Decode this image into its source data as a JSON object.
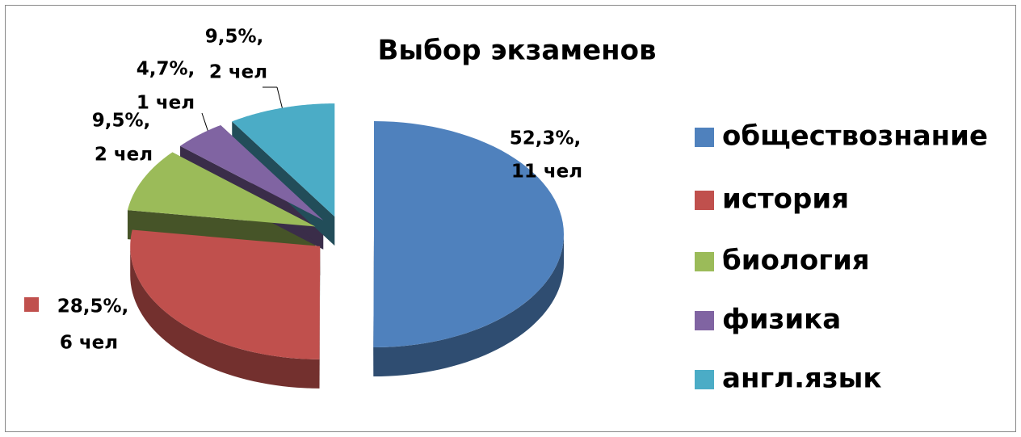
{
  "chart_data": {
    "type": "pie",
    "title": "Выбор экзаменов",
    "categories": [
      "обществознание",
      "история",
      "биология",
      "физика",
      "англ.язык"
    ],
    "values": [
      52.3,
      28.5,
      9.5,
      4.7,
      9.5
    ],
    "value_labels": [
      [
        "52,3%,",
        "11 чел"
      ],
      [
        "28,5%,",
        "6 чел"
      ],
      [
        "9,5%,",
        "2 чел"
      ],
      [
        "4,7%,",
        "1 чел"
      ],
      [
        "9,5%,",
        "2 чел"
      ]
    ],
    "colors": [
      "#4f81bd",
      "#c0504d",
      "#9bbb59",
      "#8064a2",
      "#4bacc6"
    ],
    "legend": "right"
  }
}
